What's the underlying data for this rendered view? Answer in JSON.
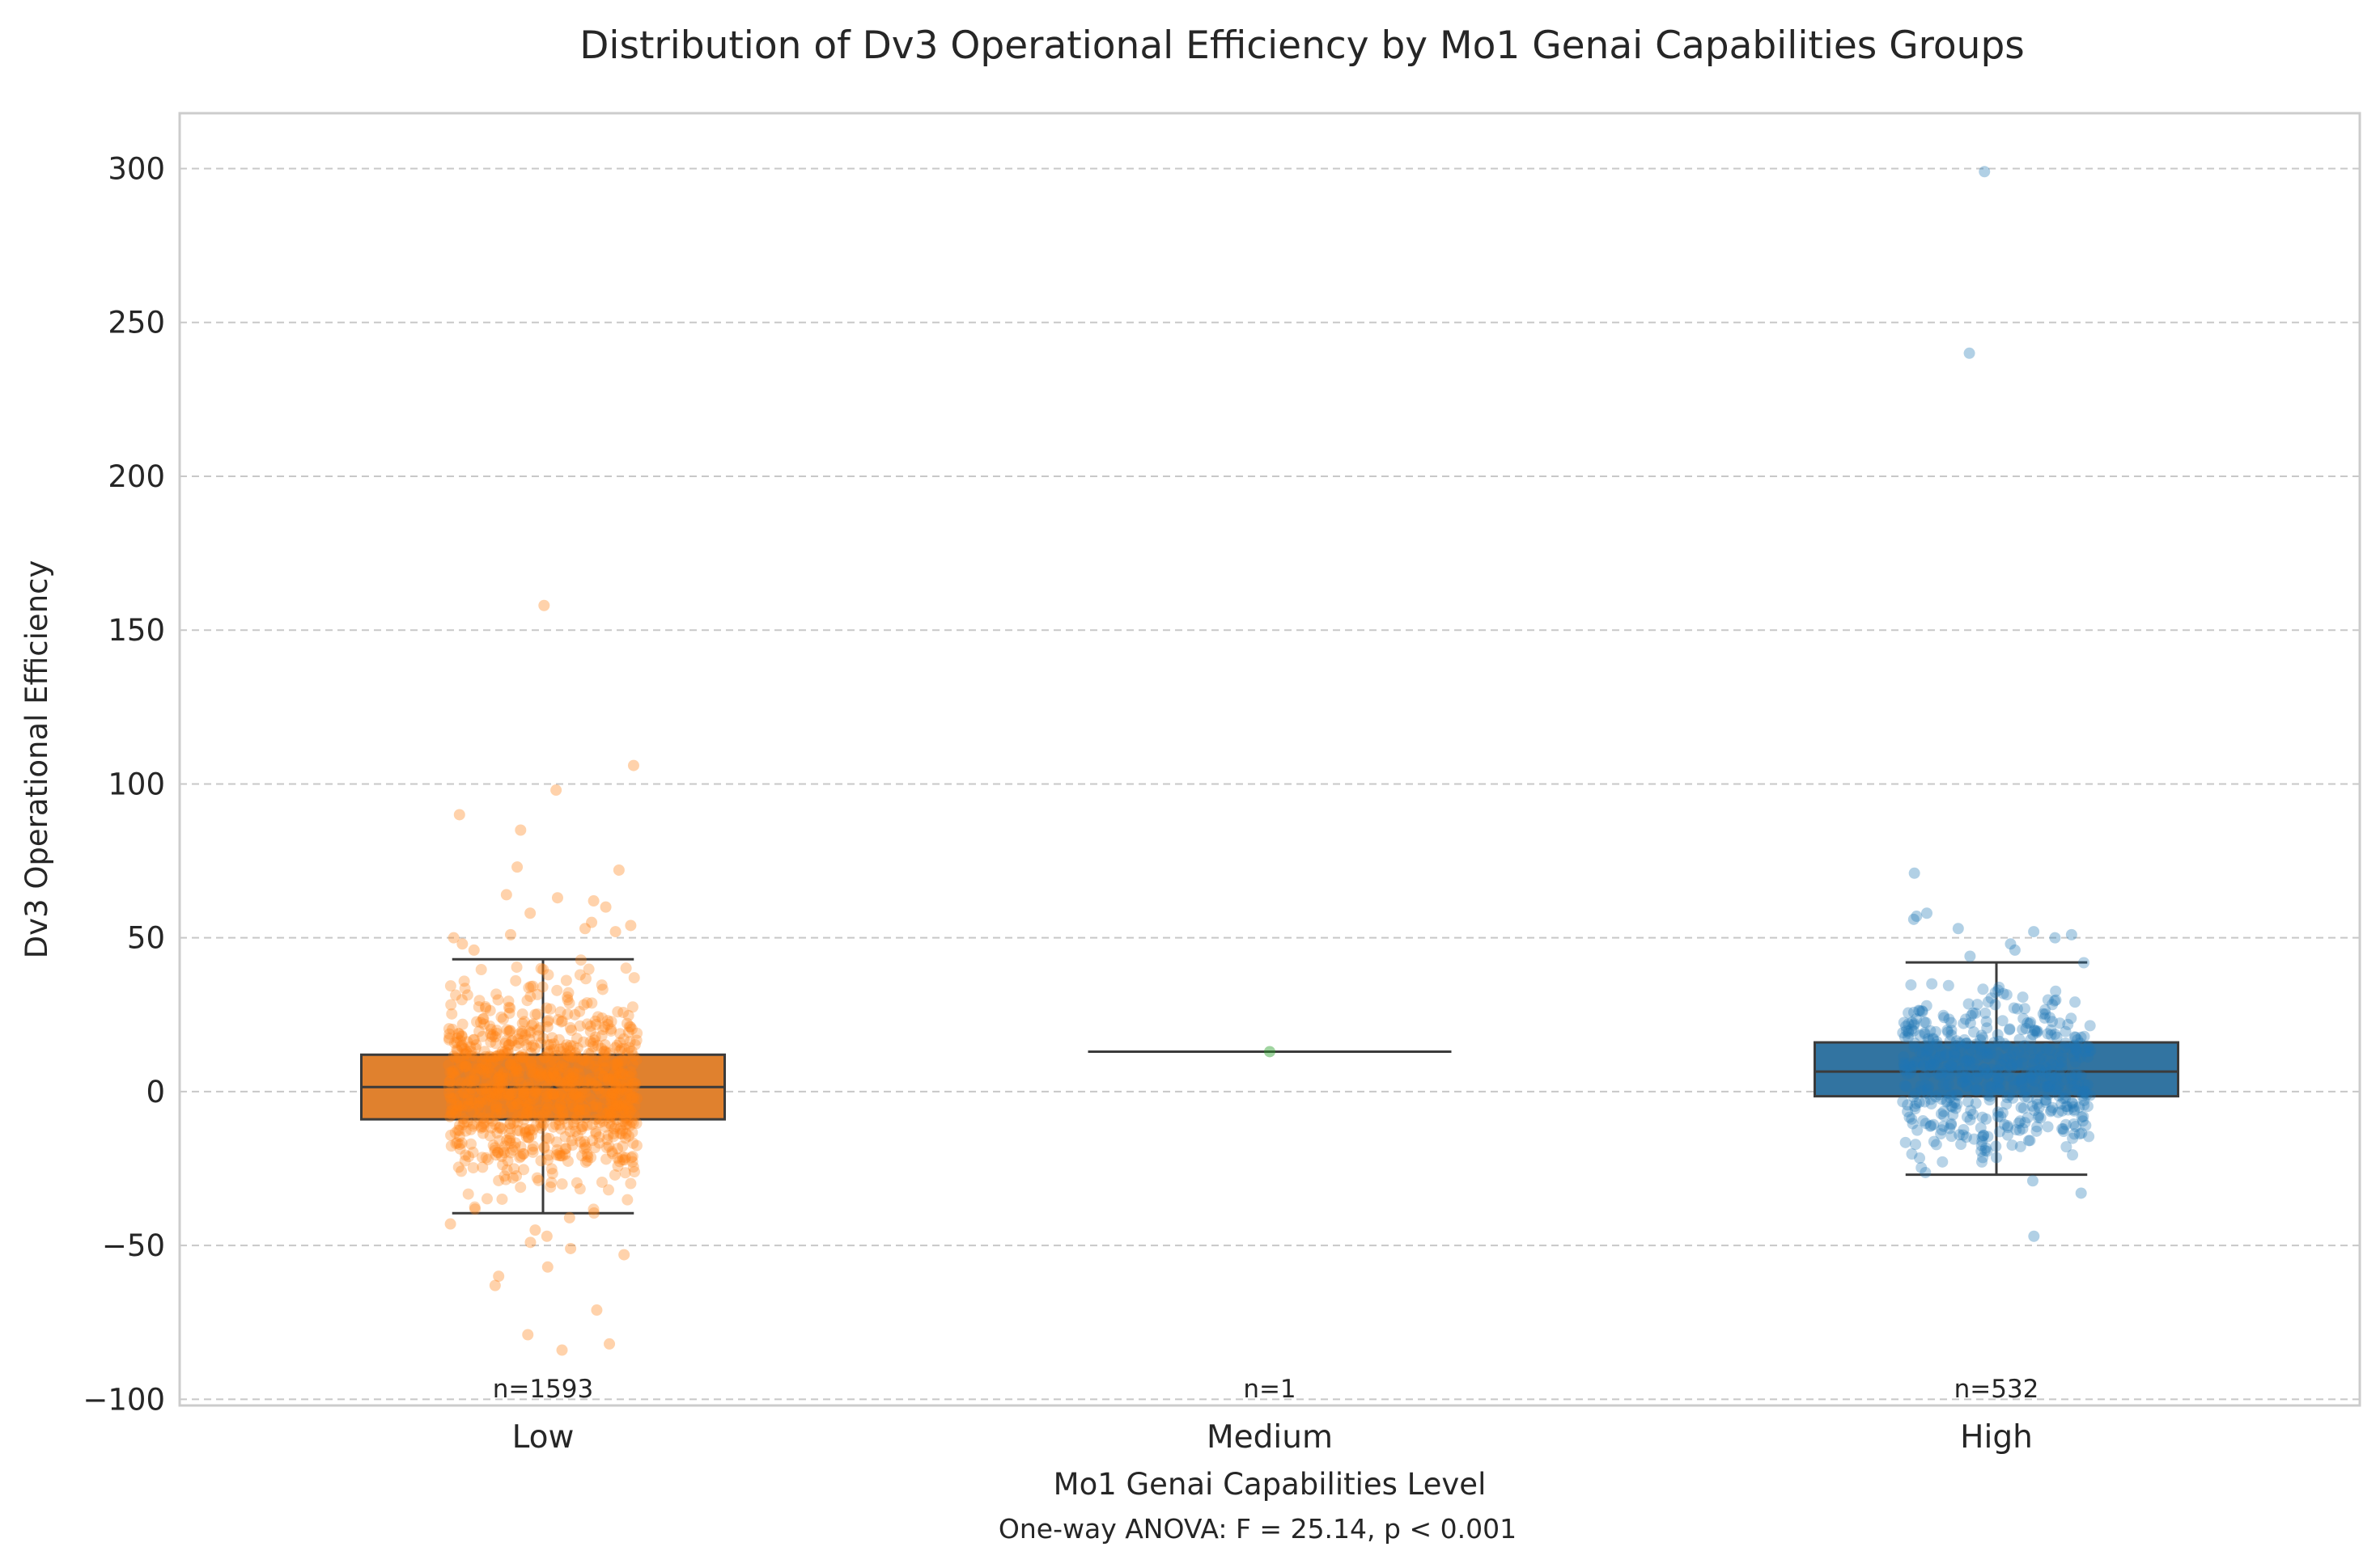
{
  "chart_data": {
    "type": "box",
    "title": "Distribution of Dv3 Operational Efficiency by Mo1 Genai Capabilities Groups",
    "xlabel": "Mo1 Genai Capabilities Level",
    "ylabel": "Dv3 Operational Efficiency",
    "footnote": "One-way ANOVA: F = 25.14, p < 0.001",
    "ylim": [
      -102,
      318
    ],
    "yticks": [
      -100,
      -50,
      0,
      50,
      100,
      150,
      200,
      250,
      300
    ],
    "ytick_labels": [
      "−100",
      "−50",
      "0",
      "50",
      "100",
      "150",
      "200",
      "250",
      "300"
    ],
    "grid": "y-dashed",
    "categories": [
      "Low",
      "Medium",
      "High"
    ],
    "groups": [
      {
        "name": "Low",
        "n_label": "n=1593",
        "color": "#ff7f0e",
        "box_color": "#e0812e",
        "q1": -9,
        "median": 1.5,
        "q3": 12,
        "whisker_low": -39.5,
        "whisker_high": 43,
        "outliers": [
          158,
          106,
          98,
          90,
          85,
          73,
          72,
          64,
          63,
          62,
          60,
          58,
          55,
          54,
          53,
          52,
          51,
          50,
          48,
          46,
          -41,
          -43,
          -45,
          -47,
          -49,
          -51,
          -53,
          -57,
          -60,
          -63,
          -71,
          -79,
          -82,
          -84
        ]
      },
      {
        "name": "Medium",
        "n_label": "n=1",
        "color": "#2ca02c",
        "box_color": "#3a923a",
        "q1": 13,
        "median": 13,
        "q3": 13,
        "whisker_low": 13,
        "whisker_high": 13,
        "outliers": []
      },
      {
        "name": "High",
        "n_label": "n=532",
        "color": "#1f77b4",
        "box_color": "#3274a1",
        "q1": -1.5,
        "median": 6.5,
        "q3": 16,
        "whisker_low": -27,
        "whisker_high": 42,
        "outliers": [
          299,
          240,
          71,
          58,
          57,
          56,
          53,
          52,
          51,
          50,
          48,
          46,
          44,
          -29,
          -33,
          -47
        ]
      }
    ]
  }
}
